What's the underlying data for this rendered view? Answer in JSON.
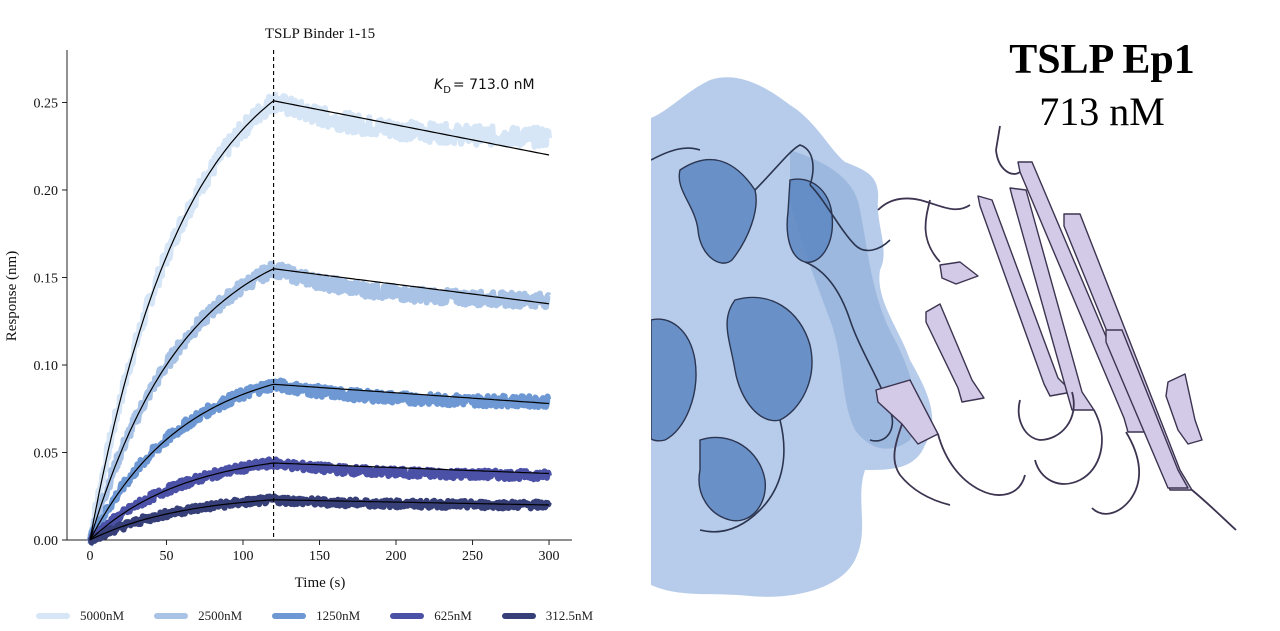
{
  "chart_data": {
    "type": "line",
    "title": "TSLP Binder 1-15",
    "xlabel": "Time (s)",
    "ylabel": "Response (nm)",
    "xlim": [
      -15,
      315
    ],
    "ylim": [
      0,
      0.28
    ],
    "xticks": [
      "0",
      "50",
      "100",
      "150",
      "200",
      "250",
      "300"
    ],
    "yticks": [
      "0.00",
      "0.05",
      "0.10",
      "0.15",
      "0.20",
      "0.25"
    ],
    "annotation": {
      "label": "K",
      "subscript": "D",
      "value": "= 713.0 nM"
    },
    "dissociation_start": 120,
    "grid": false,
    "legend_position": "bottom",
    "series": [
      {
        "name": "5000nM",
        "color": "#d6e6f7",
        "peak": 0.251,
        "end": 0.23,
        "fit_end": 0.22
      },
      {
        "name": "2500nM",
        "color": "#a9c3e6",
        "peak": 0.155,
        "end": 0.137,
        "fit_end": 0.135
      },
      {
        "name": "1250nM",
        "color": "#6d98d3",
        "peak": 0.089,
        "end": 0.079,
        "fit_end": 0.078
      },
      {
        "name": "625nM",
        "color": "#4b51a6",
        "peak": 0.044,
        "end": 0.037,
        "fit_end": 0.038
      },
      {
        "name": "312.5nM",
        "color": "#363f78",
        "peak": 0.023,
        "end": 0.02,
        "fit_end": 0.02
      }
    ]
  },
  "panel": {
    "title": "TSLP Ep1",
    "subtitle": "713 nM",
    "colors": {
      "receptor": "#5c86c2",
      "receptor_surface": "#a9c2e6",
      "binder": "#cdc3e4",
      "outline": "#2b3550"
    }
  }
}
